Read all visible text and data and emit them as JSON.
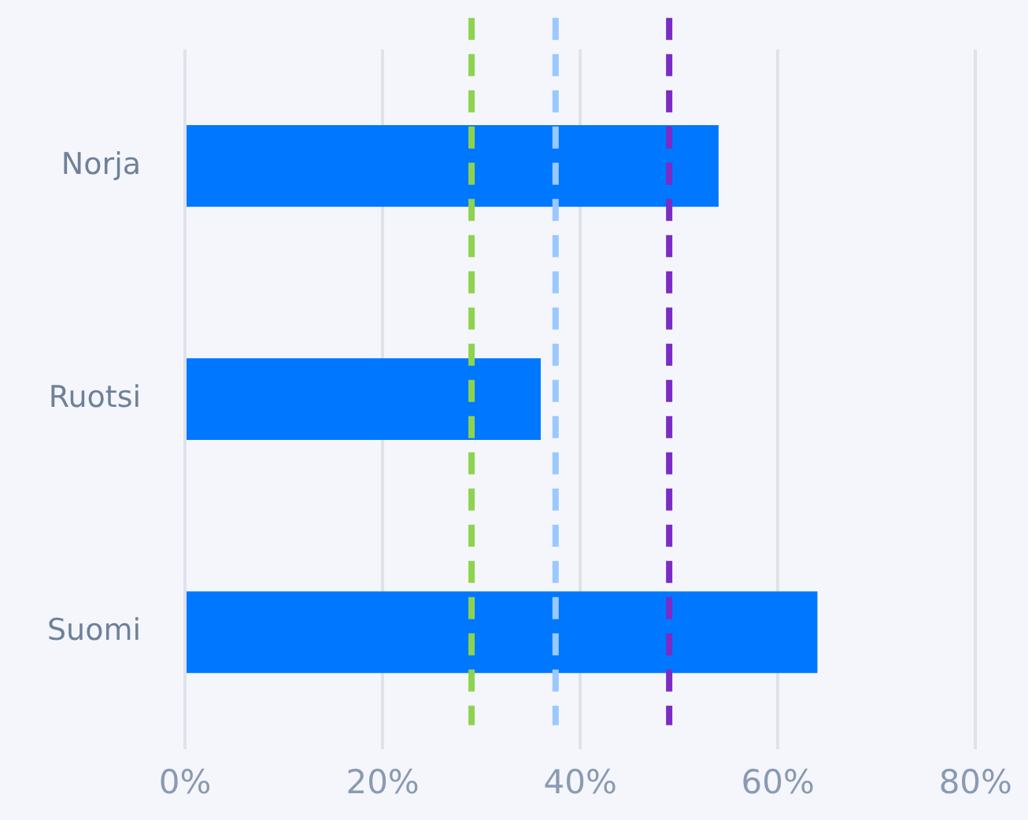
{
  "chart_data": {
    "type": "bar",
    "orientation": "horizontal",
    "categories": [
      "Norja",
      "Ruotsi",
      "Suomi"
    ],
    "values": [
      54,
      36,
      64
    ],
    "color": "#0077ff",
    "xlim": [
      0,
      80
    ],
    "xticks": [
      {
        "value": 0,
        "label": "0%"
      },
      {
        "value": 20,
        "label": "20%"
      },
      {
        "value": 40,
        "label": "40%"
      },
      {
        "value": 60,
        "label": "60%"
      },
      {
        "value": 80,
        "label": "80%"
      }
    ],
    "grid": "x",
    "legend": false,
    "ref_lines": [
      {
        "axis": "x",
        "value": 29,
        "color": "#8ed34f",
        "line_style": "dashed"
      },
      {
        "axis": "x",
        "value": 37.5,
        "color": "#99c9ff",
        "line_style": "dashed"
      },
      {
        "axis": "x",
        "value": 49,
        "color": "#7b2cc4",
        "line_style": "dashed"
      }
    ]
  }
}
